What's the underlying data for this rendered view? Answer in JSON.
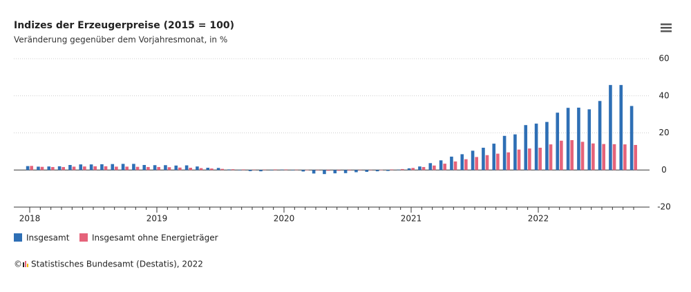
{
  "chart_data": {
    "type": "bar",
    "title": "Indizes der Erzeugerpreise (2015 = 100)",
    "subtitle": "Veränderung gegenüber dem Vorjahresmonat, in %",
    "categories": [
      "2018",
      null,
      null,
      null,
      null,
      null,
      null,
      null,
      null,
      null,
      null,
      null,
      "2019",
      null,
      null,
      null,
      null,
      null,
      null,
      null,
      null,
      null,
      null,
      null,
      "2020",
      null,
      null,
      null,
      null,
      null,
      null,
      null,
      null,
      null,
      null,
      null,
      "2021",
      null,
      null,
      null,
      null,
      null,
      null,
      null,
      null,
      null,
      null,
      null,
      "2022",
      null,
      null,
      null,
      null,
      null,
      null,
      null,
      null,
      null
    ],
    "series": [
      {
        "name": "Insgesamt",
        "color": "#2e6fb5",
        "values": [
          2.1,
          1.8,
          1.9,
          2.0,
          2.7,
          3.0,
          3.0,
          3.1,
          3.2,
          3.3,
          3.3,
          2.7,
          2.6,
          2.6,
          2.4,
          2.5,
          1.9,
          1.2,
          1.1,
          0.3,
          -0.1,
          -0.6,
          -0.7,
          -0.2,
          0.2,
          -0.1,
          -0.8,
          -1.9,
          -2.2,
          -1.8,
          -1.7,
          -1.2,
          -1.0,
          -0.7,
          -0.5,
          0.2,
          0.9,
          1.9,
          3.7,
          5.2,
          7.2,
          8.5,
          10.4,
          12.0,
          14.2,
          18.4,
          19.2,
          24.2,
          25.0,
          25.9,
          30.9,
          33.5,
          33.6,
          32.7,
          37.2,
          45.8,
          45.8,
          34.5
        ]
      },
      {
        "name": "Insgesamt ohne Energieträger",
        "color": "#e5637a",
        "values": [
          2.2,
          1.7,
          1.6,
          1.6,
          1.8,
          1.9,
          2.0,
          2.0,
          1.8,
          1.8,
          1.7,
          1.6,
          1.6,
          1.5,
          1.3,
          1.2,
          1.0,
          0.8,
          0.6,
          0.4,
          0.3,
          0.2,
          0.2,
          0.3,
          0.3,
          0.2,
          0.1,
          -0.2,
          -0.4,
          -0.4,
          -0.3,
          -0.2,
          -0.1,
          0.1,
          0.3,
          0.5,
          1.1,
          1.6,
          2.4,
          3.4,
          4.6,
          5.8,
          7.0,
          8.0,
          8.8,
          9.5,
          11.0,
          11.6,
          12.0,
          13.8,
          15.8,
          16.1,
          15.2,
          14.3,
          14.0,
          13.9,
          13.8,
          13.5
        ]
      }
    ],
    "ylim": [
      -20,
      60
    ],
    "yticks": [
      -20,
      0,
      20,
      40,
      60
    ],
    "grid": true,
    "legend": "bottom",
    "credit_symbol": "©",
    "credit": "Statistisches Bundesamt (Destatis), 2022"
  }
}
